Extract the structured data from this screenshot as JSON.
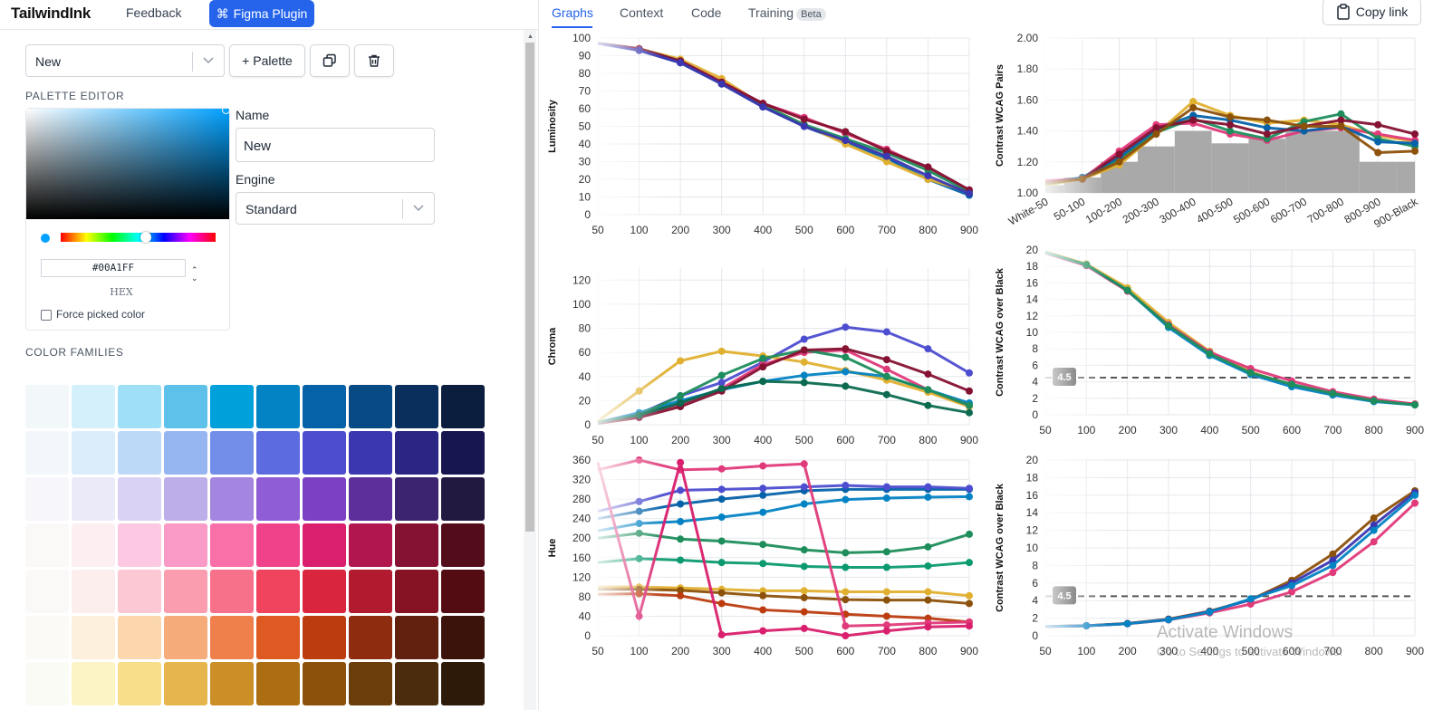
{
  "app": {
    "logo": "TailwindInk",
    "feedback": "Feedback",
    "figma": "Figma Plugin"
  },
  "toolbar": {
    "palette_select": "New",
    "add_palette": "+ Palette"
  },
  "editor": {
    "title": "PALETTE EDITOR",
    "hex_value": "#00A1FF",
    "hex_label": "HEX",
    "force_label": "Force picked color",
    "name_label": "Name",
    "name_value": "New",
    "engine_label": "Engine",
    "engine_value": "Standard",
    "accent": "#00a1ff"
  },
  "families": {
    "title": "COLOR FAMILIES",
    "rows": [
      [
        "#f2f7fa",
        "#d4f0fb",
        "#a0e0f7",
        "#5ec1ea",
        "#00a1da",
        "#0383c3",
        "#0562a9",
        "#084a84",
        "#0b2f5c",
        "#0b1e3e"
      ],
      [
        "#f3f7fc",
        "#dbecfb",
        "#bdd9f8",
        "#95b6f1",
        "#738ee8",
        "#5d6be0",
        "#4d4dd0",
        "#3b37b0",
        "#2b2684",
        "#181650"
      ],
      [
        "#f6f6fb",
        "#ebeaf9",
        "#d9d2f4",
        "#bdaeea",
        "#a485df",
        "#8f5ed6",
        "#7b40c4",
        "#5d2f9b",
        "#3c2470",
        "#221940"
      ],
      [
        "#fbf9f8",
        "#fdeef2",
        "#fcc8e2",
        "#fa9ac6",
        "#f96fa7",
        "#f0428a",
        "#d91f6d",
        "#b2164e",
        "#851232",
        "#520c1a"
      ],
      [
        "#fbf9f8",
        "#fdeeee",
        "#fcc8d3",
        "#fa9daf",
        "#f8718a",
        "#f0445e",
        "#d9253e",
        "#b21a30",
        "#851324",
        "#520c12"
      ],
      [
        "#fbfaf6",
        "#fdf0dc",
        "#fcd7ae",
        "#f6ab7a",
        "#ef7f4b",
        "#df5a23",
        "#bc3c10",
        "#8e2c10",
        "#62200f",
        "#3b130a"
      ],
      [
        "#fbfbf6",
        "#fdf4c6",
        "#f8dd8a",
        "#e7b54d",
        "#cc8e27",
        "#ad6d12",
        "#8c510a",
        "#6a3d0b",
        "#4b2c0c",
        "#2e1a08"
      ]
    ]
  },
  "tabs": {
    "graphs": "Graphs",
    "context": "Context",
    "code": "Code",
    "training": "Training",
    "beta": "Beta",
    "copy": "Copy link"
  },
  "watermark": {
    "line1": "Activate Windows",
    "line2": "Go to Settings to activate Windows."
  },
  "chart_data": [
    {
      "type": "line",
      "ylabel": "Luminosity",
      "x": [
        "50",
        "100",
        "200",
        "300",
        "400",
        "500",
        "600",
        "700",
        "800",
        "900"
      ],
      "yticks": [
        0,
        10,
        20,
        30,
        40,
        50,
        60,
        70,
        80,
        90,
        100
      ],
      "ylim": [
        0,
        100
      ],
      "series": [
        {
          "color": "#0562a9",
          "values": [
            97,
            93,
            86,
            74,
            61,
            50,
            41,
            32,
            20,
            11
          ]
        },
        {
          "color": "#e0b030",
          "values": [
            97,
            94,
            88,
            77,
            62,
            51,
            40,
            30,
            20,
            13
          ]
        },
        {
          "color": "#e03a7a",
          "values": [
            97,
            94,
            87,
            75,
            63,
            55,
            46,
            37,
            26,
            14
          ]
        },
        {
          "color": "#1e8d5c",
          "values": [
            97,
            94,
            87,
            74,
            62,
            51,
            43,
            35,
            25,
            13
          ]
        },
        {
          "color": "#851232",
          "values": [
            97,
            94,
            87,
            75,
            63,
            54,
            47,
            36,
            27,
            14
          ]
        },
        {
          "color": "#3b37b0",
          "values": [
            97,
            93,
            86,
            74,
            61,
            50,
            42,
            33,
            22,
            12
          ]
        }
      ]
    },
    {
      "type": "bar+line",
      "ylabel": "Contrast WCAG Pairs",
      "categories": [
        "White-50",
        "50-100",
        "100-200",
        "200-300",
        "300-400",
        "400-500",
        "500-600",
        "600-700",
        "700-800",
        "800-900",
        "900-Black"
      ],
      "yticks": [
        "1.00",
        "1.20",
        "1.40",
        "1.60",
        "1.80",
        "2.00"
      ],
      "ylim": [
        1.0,
        2.0
      ],
      "bars": [
        1.05,
        1.1,
        1.2,
        1.3,
        1.4,
        1.32,
        1.35,
        1.4,
        1.4,
        1.2,
        1.2
      ],
      "series": [
        {
          "color": "#e0b030",
          "values": [
            1.05,
            1.09,
            1.18,
            1.38,
            1.59,
            1.5,
            1.45,
            1.47,
            1.44,
            1.37,
            1.33
          ]
        },
        {
          "color": "#e03a7a",
          "values": [
            1.08,
            1.09,
            1.27,
            1.44,
            1.45,
            1.38,
            1.34,
            1.4,
            1.42,
            1.38,
            1.34
          ]
        },
        {
          "color": "#1e8d5c",
          "values": [
            1.06,
            1.09,
            1.22,
            1.39,
            1.48,
            1.4,
            1.35,
            1.46,
            1.51,
            1.35,
            1.3
          ]
        },
        {
          "color": "#0562a9",
          "values": [
            1.06,
            1.1,
            1.23,
            1.41,
            1.5,
            1.47,
            1.42,
            1.4,
            1.43,
            1.33,
            1.32
          ]
        },
        {
          "color": "#851232",
          "values": [
            1.07,
            1.09,
            1.25,
            1.42,
            1.47,
            1.44,
            1.38,
            1.43,
            1.47,
            1.44,
            1.38
          ]
        },
        {
          "color": "#8c510a",
          "values": [
            1.06,
            1.09,
            1.2,
            1.38,
            1.55,
            1.49,
            1.47,
            1.43,
            1.43,
            1.26,
            1.27
          ]
        }
      ]
    },
    {
      "type": "line",
      "ylabel": "Chroma",
      "x": [
        "50",
        "100",
        "200",
        "300",
        "400",
        "500",
        "600",
        "700",
        "800",
        "900"
      ],
      "yticks": [
        0,
        20,
        40,
        60,
        80,
        100,
        120
      ],
      "ylim": [
        0,
        130
      ],
      "series": [
        {
          "color": "#4d4dd0",
          "values": [
            2,
            9,
            24,
            35,
            52,
            71,
            81,
            77,
            63,
            43
          ]
        },
        {
          "color": "#e0b030",
          "values": [
            3,
            28,
            53,
            61,
            57,
            52,
            45,
            37,
            27,
            15
          ]
        },
        {
          "color": "#e03a7a",
          "values": [
            1,
            8,
            17,
            30,
            50,
            60,
            62,
            46,
            29,
            16
          ]
        },
        {
          "color": "#0383c3",
          "values": [
            2,
            10,
            20,
            29,
            36,
            41,
            44,
            40,
            29,
            18
          ]
        },
        {
          "color": "#1e8d5c",
          "values": [
            2,
            8,
            24,
            41,
            55,
            62,
            56,
            40,
            29,
            16
          ]
        },
        {
          "color": "#851232",
          "values": [
            1,
            6,
            15,
            28,
            48,
            62,
            63,
            54,
            42,
            28
          ]
        },
        {
          "color": "#0b6a4f",
          "values": [
            2,
            8,
            18,
            30,
            36,
            35,
            32,
            25,
            16,
            10
          ]
        }
      ]
    },
    {
      "type": "line",
      "ylabel": "Contrast WCAG over Black",
      "x": [
        "50",
        "100",
        "200",
        "300",
        "400",
        "500",
        "600",
        "700",
        "800",
        "900"
      ],
      "yticks": [
        0,
        2,
        4,
        6,
        8,
        10,
        12,
        14,
        16,
        18,
        20
      ],
      "ylim": [
        0,
        20
      ],
      "threshold": 4.5,
      "threshold_label": "4.5",
      "series": [
        {
          "color": "#e0b030",
          "values": [
            19.8,
            18.3,
            15.4,
            11.2,
            7.7,
            5.2,
            3.6,
            2.5,
            1.7,
            1.3
          ]
        },
        {
          "color": "#e03a7a",
          "values": [
            19.6,
            18.1,
            15.0,
            10.9,
            7.6,
            5.6,
            4.1,
            2.8,
            1.9,
            1.3
          ]
        },
        {
          "color": "#0383c3",
          "values": [
            19.7,
            18.2,
            15.1,
            10.6,
            7.2,
            4.9,
            3.4,
            2.4,
            1.6,
            1.2
          ]
        },
        {
          "color": "#1e8d5c",
          "values": [
            19.7,
            18.2,
            15.1,
            10.8,
            7.4,
            5.1,
            3.7,
            2.6,
            1.7,
            1.2
          ]
        }
      ]
    },
    {
      "type": "line",
      "ylabel": "Hue",
      "x": [
        "50",
        "100",
        "200",
        "300",
        "400",
        "500",
        "600",
        "700",
        "800",
        "900"
      ],
      "yticks": [
        0,
        40,
        80,
        120,
        160,
        200,
        240,
        280,
        320,
        360
      ],
      "ylim": [
        0,
        360
      ],
      "series": [
        {
          "color": "#0562a9",
          "values": [
            240,
            255,
            270,
            280,
            288,
            297,
            300,
            300,
            300,
            300
          ]
        },
        {
          "color": "#4d4dd0",
          "values": [
            255,
            275,
            298,
            300,
            302,
            305,
            308,
            305,
            305,
            302
          ]
        },
        {
          "color": "#0383c3",
          "values": [
            215,
            230,
            234,
            243,
            253,
            270,
            279,
            282,
            284,
            285
          ]
        },
        {
          "color": "#1e8d5c",
          "values": [
            200,
            210,
            198,
            194,
            187,
            176,
            170,
            172,
            182,
            208
          ]
        },
        {
          "color": "#0b9a6f",
          "values": [
            150,
            158,
            155,
            150,
            148,
            142,
            140,
            140,
            143,
            150
          ]
        },
        {
          "color": "#e0b030",
          "values": [
            100,
            100,
            98,
            95,
            92,
            92,
            90,
            90,
            90,
            82
          ]
        },
        {
          "color": "#8c510a",
          "values": [
            95,
            95,
            93,
            88,
            82,
            78,
            74,
            73,
            73,
            66
          ]
        },
        {
          "color": "#bc3c10",
          "values": [
            85,
            86,
            82,
            66,
            53,
            49,
            44,
            40,
            36,
            28
          ]
        },
        {
          "color": "#e03a7a",
          "values": [
            340,
            360,
            340,
            342,
            348,
            352,
            20,
            22,
            26,
            28
          ]
        },
        {
          "color": "#d91f6d",
          "values": [
            355,
            40,
            355,
            2,
            10,
            15,
            0,
            10,
            18,
            20
          ]
        }
      ]
    },
    {
      "type": "line",
      "ylabel": "Contrast WCAG over Black",
      "x": [
        "50",
        "100",
        "200",
        "300",
        "400",
        "500",
        "600",
        "700",
        "800",
        "900"
      ],
      "yticks": [
        0,
        2,
        4,
        6,
        8,
        10,
        12,
        14,
        16,
        18,
        20
      ],
      "ylim": [
        0,
        20
      ],
      "threshold": 4.5,
      "threshold_label": "4.5",
      "series": [
        {
          "color": "#8c510a",
          "values": [
            1.06,
            1.15,
            1.4,
            1.9,
            2.8,
            4.1,
            6.3,
            9.3,
            13.4,
            16.5
          ]
        },
        {
          "color": "#3b37b0",
          "values": [
            1.06,
            1.14,
            1.38,
            1.85,
            2.75,
            4.1,
            6.0,
            8.6,
            12.6,
            16.3
          ]
        },
        {
          "color": "#e03a7a",
          "values": [
            1.05,
            1.13,
            1.36,
            1.8,
            2.6,
            3.6,
            5.0,
            7.2,
            10.7,
            15.1
          ]
        },
        {
          "color": "#0383c3",
          "values": [
            1.05,
            1.14,
            1.37,
            1.82,
            2.7,
            4.2,
            5.7,
            8.0,
            12.0,
            16.0
          ]
        }
      ]
    }
  ]
}
